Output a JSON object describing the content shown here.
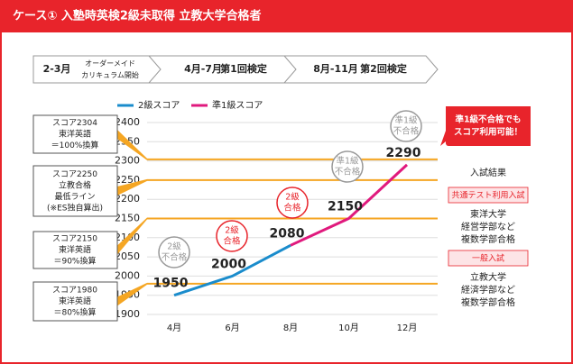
{
  "header": {
    "title": "ケース① 入塾時英検2級未取得 立教大学合格者"
  },
  "timeline": [
    {
      "period": "2-3月",
      "label": [
        "オーダーメイド",
        "カリキュラム開始"
      ]
    },
    {
      "period": "4月-7月",
      "label": [
        "第1回検定"
      ]
    },
    {
      "period": "8月-11月",
      "label": [
        "第2回検定"
      ]
    }
  ],
  "chart_data": {
    "type": "line",
    "categories": [
      "4月",
      "6月",
      "8月",
      "10月",
      "12月"
    ],
    "series": [
      {
        "name": "2級スコア",
        "color": "#1a8ccc",
        "values": [
          1950,
          2000,
          2080,
          null,
          null
        ]
      },
      {
        "name": "準1級スコア",
        "color": "#e0197d",
        "values": [
          null,
          null,
          2080,
          2150,
          2290
        ]
      }
    ],
    "ylim": [
      1900,
      2400
    ],
    "yticks": [
      1900,
      1950,
      2000,
      2050,
      2100,
      2150,
      2200,
      2250,
      2300,
      2350,
      2400
    ],
    "grid": true,
    "reference_lines": [
      {
        "value": 2304,
        "color": "#f5a623",
        "label": [
          "スコア2304",
          "東洋英語",
          "＝100%換算"
        ]
      },
      {
        "value": 2250,
        "color": "#f5a623",
        "label": [
          "スコア2250",
          "立教合格",
          "最低ライン",
          "(※ES独自算出)"
        ]
      },
      {
        "value": 2150,
        "color": "#f5a623",
        "label": [
          "スコア2150",
          "東洋英語",
          "＝90%換算"
        ]
      },
      {
        "value": 1980,
        "color": "#f5a623",
        "label": [
          "スコア1980",
          "東洋英語",
          "＝80%換算"
        ]
      }
    ],
    "annotations": [
      {
        "lines": [
          "2級",
          "不合格"
        ],
        "color": "#999999"
      },
      {
        "lines": [
          "2級",
          "合格"
        ],
        "color": "#e8242b"
      },
      {
        "lines": [
          "2級",
          "合格"
        ],
        "color": "#e8242b"
      },
      {
        "lines": [
          "準1級",
          "不合格"
        ],
        "color": "#999999"
      },
      {
        "lines": [
          "準1級",
          "不合格"
        ],
        "color": "#999999"
      }
    ],
    "callout": {
      "lines": [
        "準1級不合格でも",
        "スコア利用可能！"
      ],
      "color": "#e8242b"
    }
  },
  "results": {
    "title": "入試結果",
    "sections": [
      {
        "name": "共通テスト利用入試",
        "lines": [
          "東洋大学",
          "経営学部など",
          "複数学部合格"
        ]
      },
      {
        "name": "一般入試",
        "lines": [
          "立教大学",
          "経済学部など",
          "複数学部合格"
        ]
      }
    ]
  }
}
